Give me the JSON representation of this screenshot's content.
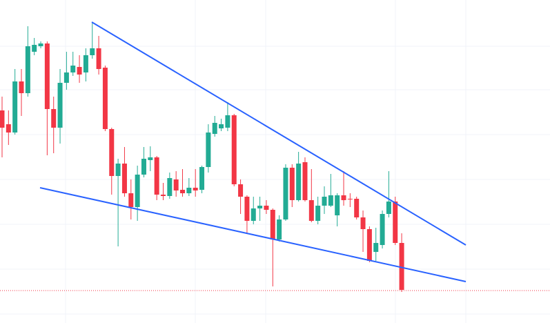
{
  "chart_data": {
    "type": "candlestick",
    "x": [
      0,
      1,
      2,
      3,
      4,
      5,
      6,
      7,
      8,
      9,
      10,
      11,
      12,
      13,
      14,
      15,
      16,
      17,
      18,
      19,
      20,
      21,
      22,
      23,
      24,
      25,
      26,
      27,
      28,
      29,
      30,
      31,
      32,
      33,
      34,
      35,
      36,
      37,
      38,
      39,
      40,
      41,
      42,
      43,
      44,
      45,
      46,
      47,
      48,
      49,
      50,
      51,
      52,
      53,
      54,
      55,
      56,
      57,
      58,
      59,
      60,
      61,
      62
    ],
    "open": [
      308,
      288,
      276,
      350,
      333,
      393,
      401,
      405,
      310,
      283,
      348,
      363,
      371,
      363,
      388,
      398,
      370,
      281,
      213,
      231,
      188,
      168,
      215,
      236,
      240,
      186,
      184,
      208,
      193,
      188,
      196,
      193,
      226,
      274,
      282,
      283,
      301,
      201,
      183,
      148,
      166,
      170,
      164,
      121,
      150,
      225,
      178,
      233,
      178,
      148,
      170,
      170,
      156,
      185,
      180,
      180,
      153,
      136,
      103,
      113,
      158,
      176,
      116
    ],
    "high": [
      328,
      308,
      368,
      368,
      430,
      413,
      408,
      408,
      328,
      368,
      393,
      393,
      388,
      398,
      436,
      416,
      373,
      283,
      238,
      255,
      208,
      228,
      255,
      256,
      242,
      203,
      218,
      220,
      223,
      210,
      223,
      228,
      288,
      300,
      296,
      320,
      303,
      208,
      185,
      183,
      183,
      178,
      166,
      156,
      230,
      230,
      248,
      240,
      223,
      183,
      198,
      216,
      188,
      220,
      188,
      183,
      163,
      140,
      138,
      163,
      220,
      183,
      130
    ],
    "low": [
      240,
      258,
      273,
      300,
      328,
      388,
      398,
      243,
      246,
      260,
      338,
      358,
      348,
      350,
      383,
      360,
      278,
      186,
      111,
      183,
      150,
      148,
      211,
      220,
      178,
      178,
      180,
      183,
      183,
      184,
      183,
      188,
      218,
      270,
      278,
      278,
      198,
      158,
      130,
      143,
      148,
      158,
      53,
      118,
      148,
      168,
      176,
      176,
      146,
      143,
      158,
      168,
      140,
      170,
      168,
      150,
      103,
      88,
      90,
      108,
      153,
      113,
      45
    ],
    "close": [
      283,
      276,
      350,
      333,
      401,
      403,
      405,
      310,
      283,
      348,
      363,
      373,
      360,
      388,
      398,
      368,
      281,
      213,
      231,
      188,
      168,
      215,
      238,
      240,
      186,
      184,
      210,
      192,
      188,
      196,
      192,
      226,
      276,
      290,
      288,
      301,
      201,
      183,
      148,
      166,
      170,
      164,
      121,
      150,
      225,
      178,
      231,
      178,
      148,
      170,
      183,
      185,
      185,
      178,
      179,
      153,
      136,
      90,
      116,
      158,
      176,
      116,
      48
    ],
    "up_color": "#22ab94",
    "down_color": "#f23645",
    "xlim": [
      -0.32,
      85.01
    ],
    "ylim": [
      0,
      468
    ],
    "xticks": [
      9.85,
      29.98,
      40.9,
      61.03,
      71.95
    ],
    "yticks": [
      13,
      78,
      143,
      208,
      273,
      338,
      401
    ],
    "grid": true,
    "trendlines": [
      {
        "x": [
          13.92,
          71.95
        ],
        "y": [
          436,
          113
        ],
        "color": "#2962ff"
      },
      {
        "x": [
          5.89,
          71.95
        ],
        "y": [
          196,
          60
        ],
        "color": "#2962ff"
      }
    ],
    "last_price_line": {
      "value": 47,
      "color": "#f23645"
    }
  }
}
